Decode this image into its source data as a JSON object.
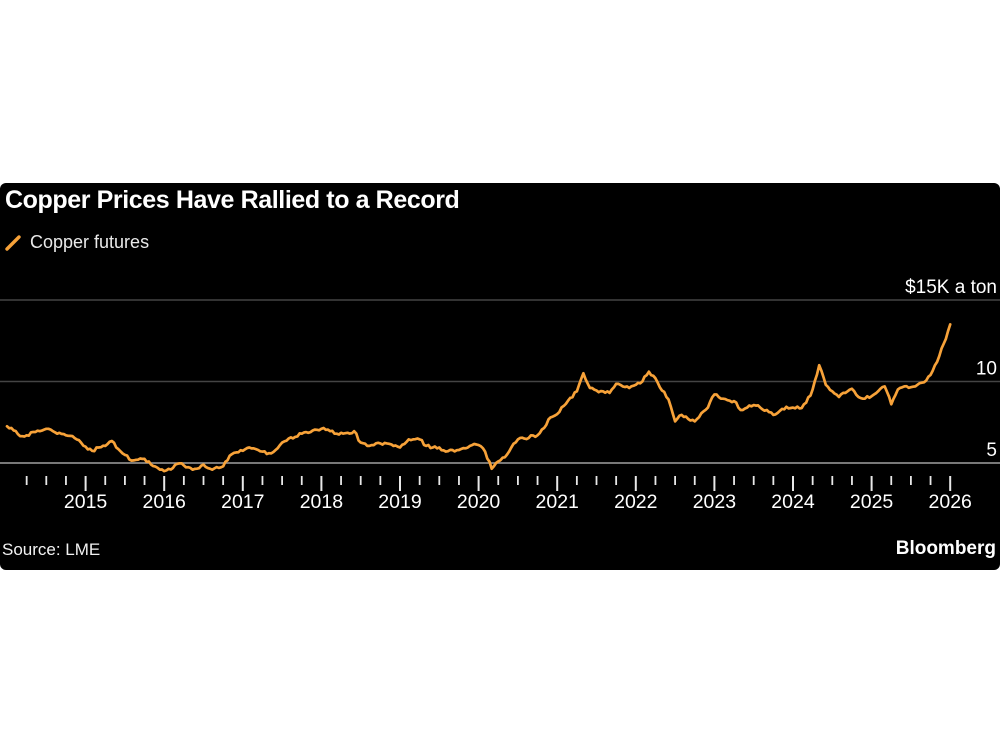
{
  "header": {
    "title": "Copper Prices Have Rallied to a Record"
  },
  "legend": {
    "label": "Copper futures",
    "swatch_icon": "orange-slash-icon"
  },
  "footer": {
    "source": "Source: LME",
    "brand": "Bloomberg"
  },
  "colors": {
    "panel_background": "#000000",
    "line": "#F7A239",
    "gridline": "#444444",
    "axis_line": "#a0a0a0",
    "tick": "#e8e8e8",
    "label_text": "#ffffff"
  },
  "chart_data": {
    "type": "line",
    "title": "Copper Prices Have Rallied to a Record",
    "unit_note": "$15K a ton",
    "grid": "horizontal",
    "legend_position": "top-left",
    "ylim": [
      3.9,
      15.9
    ],
    "y_axis": {
      "ticks": [
        {
          "label": "$15K a ton",
          "value": 15
        },
        {
          "label": "10",
          "value": 10
        },
        {
          "label": "5",
          "value": 5
        }
      ]
    },
    "x_axis": {
      "start": "2014-01",
      "end": "2026-01",
      "minor_tick": "quarterly",
      "major_tick": "yearly",
      "year_labels": [
        "2015",
        "2016",
        "2017",
        "2018",
        "2019",
        "2020",
        "2021",
        "2022",
        "2023",
        "2024",
        "2025",
        "2026"
      ]
    },
    "series": [
      {
        "name": "Copper futures",
        "frequency": "monthly",
        "unit": "thousand USD per ton",
        "values": [
          7.25,
          7.0,
          6.65,
          6.7,
          6.9,
          6.95,
          7.1,
          6.95,
          6.85,
          6.7,
          6.65,
          6.4,
          6.0,
          5.75,
          5.95,
          6.05,
          6.35,
          5.85,
          5.5,
          5.15,
          5.2,
          5.25,
          4.9,
          4.7,
          4.5,
          4.6,
          4.95,
          4.85,
          4.7,
          4.65,
          4.9,
          4.65,
          4.75,
          4.8,
          5.45,
          5.65,
          5.75,
          5.95,
          5.85,
          5.7,
          5.6,
          5.8,
          6.25,
          6.5,
          6.6,
          6.8,
          6.85,
          7.05,
          7.1,
          7.05,
          6.8,
          6.85,
          6.85,
          6.95,
          6.25,
          6.05,
          6.1,
          6.2,
          6.2,
          6.05,
          5.95,
          6.3,
          6.45,
          6.45,
          6.05,
          5.95,
          5.95,
          5.7,
          5.8,
          5.8,
          5.9,
          6.1,
          6.1,
          5.7,
          4.65,
          5.1,
          5.35,
          5.95,
          6.45,
          6.5,
          6.7,
          6.7,
          7.15,
          7.8,
          8.0,
          8.5,
          9.0,
          9.4,
          10.5,
          9.6,
          9.45,
          9.4,
          9.3,
          9.85,
          9.7,
          9.6,
          9.8,
          10.0,
          10.6,
          10.2,
          9.45,
          8.9,
          7.55,
          7.95,
          7.7,
          7.55,
          8.05,
          8.4,
          9.2,
          8.95,
          8.85,
          8.8,
          8.25,
          8.4,
          8.55,
          8.4,
          8.25,
          7.95,
          8.2,
          8.45,
          8.4,
          8.35,
          8.7,
          9.5,
          11.0,
          9.8,
          9.4,
          9.05,
          9.3,
          9.55,
          9.05,
          8.95,
          9.1,
          9.4,
          9.7,
          8.6,
          9.5,
          9.7,
          9.65,
          9.8,
          9.95,
          10.4,
          11.2,
          12.3,
          13.5
        ]
      }
    ]
  }
}
